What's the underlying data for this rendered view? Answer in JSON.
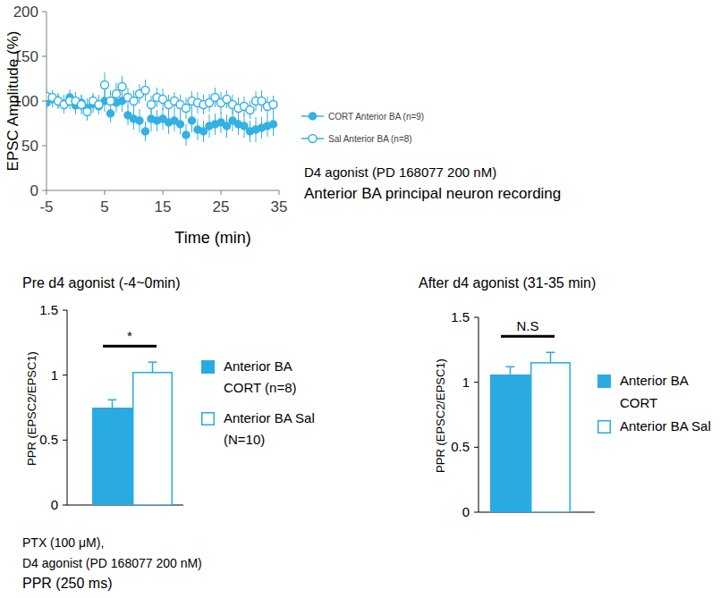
{
  "chart_data": [
    {
      "type": "scatter",
      "x_label": "Time (min)",
      "y_label": "EPSC Amplitude (%)",
      "x": [
        -5,
        -4,
        -3,
        -2,
        -1,
        0,
        1,
        2,
        3,
        4,
        5,
        6,
        7,
        8,
        9,
        10,
        11,
        12,
        13,
        14,
        15,
        16,
        17,
        18,
        19,
        20,
        21,
        22,
        23,
        24,
        25,
        26,
        27,
        28,
        29,
        30,
        31,
        32,
        33,
        34
      ],
      "xlim": [
        -5,
        35
      ],
      "xticks": [
        -5,
        5,
        15,
        25,
        35
      ],
      "ylim": [
        0,
        200
      ],
      "yticks": [
        0,
        50,
        100,
        150,
        200
      ],
      "grid": false,
      "legend": "right",
      "annotations": [
        "D4 agonist (PD 168077 200 nM)",
        "Anterior BA principal neuron recording"
      ],
      "series": [
        {
          "name": "CORT Anterior BA (n=9)",
          "color": "#33b1e3",
          "marker": "circle",
          "values": [
            98,
            102,
            100,
            97,
            104,
            95,
            98,
            92,
            97,
            94,
            100,
            86,
            98,
            100,
            84,
            80,
            78,
            66,
            80,
            78,
            80,
            76,
            78,
            74,
            62,
            78,
            68,
            66,
            72,
            74,
            76,
            72,
            78,
            74,
            72,
            66,
            68,
            70,
            72,
            74
          ],
          "errors": [
            8,
            9,
            8,
            10,
            9,
            10,
            9,
            11,
            10,
            9,
            12,
            10,
            11,
            12,
            11,
            12,
            13,
            11,
            14,
            12,
            12,
            13,
            12,
            11,
            12,
            13,
            12,
            12,
            13,
            12,
            12,
            13,
            12,
            12,
            13,
            12,
            14,
            12,
            12,
            13
          ]
        },
        {
          "name": "Sal Anterior BA (n=8)",
          "color": "#33b1e3",
          "marker": "open-circle",
          "values": [
            105,
            104,
            100,
            96,
            100,
            100,
            96,
            88,
            100,
            96,
            118,
            100,
            108,
            116,
            104,
            100,
            108,
            112,
            96,
            104,
            102,
            96,
            100,
            96,
            92,
            100,
            98,
            96,
            98,
            104,
            98,
            102,
            96,
            92,
            94,
            90,
            100,
            100,
            94,
            96
          ],
          "errors": [
            9,
            8,
            9,
            10,
            9,
            10,
            11,
            10,
            9,
            11,
            14,
            12,
            13,
            12,
            11,
            12,
            11,
            12,
            10,
            11,
            12,
            11,
            10,
            11,
            12,
            11,
            12,
            11,
            10,
            11,
            12,
            10,
            11,
            12,
            11,
            10,
            11,
            12,
            11,
            10
          ]
        }
      ]
    },
    {
      "type": "bar",
      "title": "Pre d4 agonist (-4~0min)",
      "y_label": "PPR (EPSC2/EPSC1)",
      "categories": [
        null
      ],
      "ylim": [
        0,
        1.5
      ],
      "yticks": [
        0,
        0.5,
        1,
        1.5
      ],
      "tick_labels": "y",
      "grid": false,
      "legend": "right",
      "significance": "*",
      "annotations": [
        "PTX (100 μM),",
        "D4 agonist (PD 168077 200 nM)",
        "PPR (250 ms)"
      ],
      "series": [
        {
          "name": "Anterior BA CORT (n=8)",
          "color": "#29abe2",
          "marker": "filled",
          "values": [
            0.75
          ],
          "errors": [
            0.06
          ]
        },
        {
          "name": "Anterior BA Sal (N=10)",
          "color": "#29abe2",
          "marker": "open",
          "values": [
            1.02
          ],
          "errors": [
            0.08
          ]
        }
      ]
    },
    {
      "type": "bar",
      "title": "After d4 agonist (31-35 min)",
      "y_label": "PPR (EPSC2/EPSC1)",
      "categories": [
        null
      ],
      "ylim": [
        0,
        1.5
      ],
      "yticks": [
        0,
        0.5,
        1,
        1.5
      ],
      "tick_labels": "y",
      "grid": false,
      "legend": "right",
      "significance": "N.S",
      "series": [
        {
          "name": "Anterior BA CORT",
          "color": "#29abe2",
          "marker": "filled",
          "values": [
            1.06
          ],
          "errors": [
            0.06
          ]
        },
        {
          "name": "Anterior BA Sal",
          "color": "#29abe2",
          "marker": "open",
          "values": [
            1.15
          ],
          "errors": [
            0.08
          ]
        }
      ]
    }
  ]
}
